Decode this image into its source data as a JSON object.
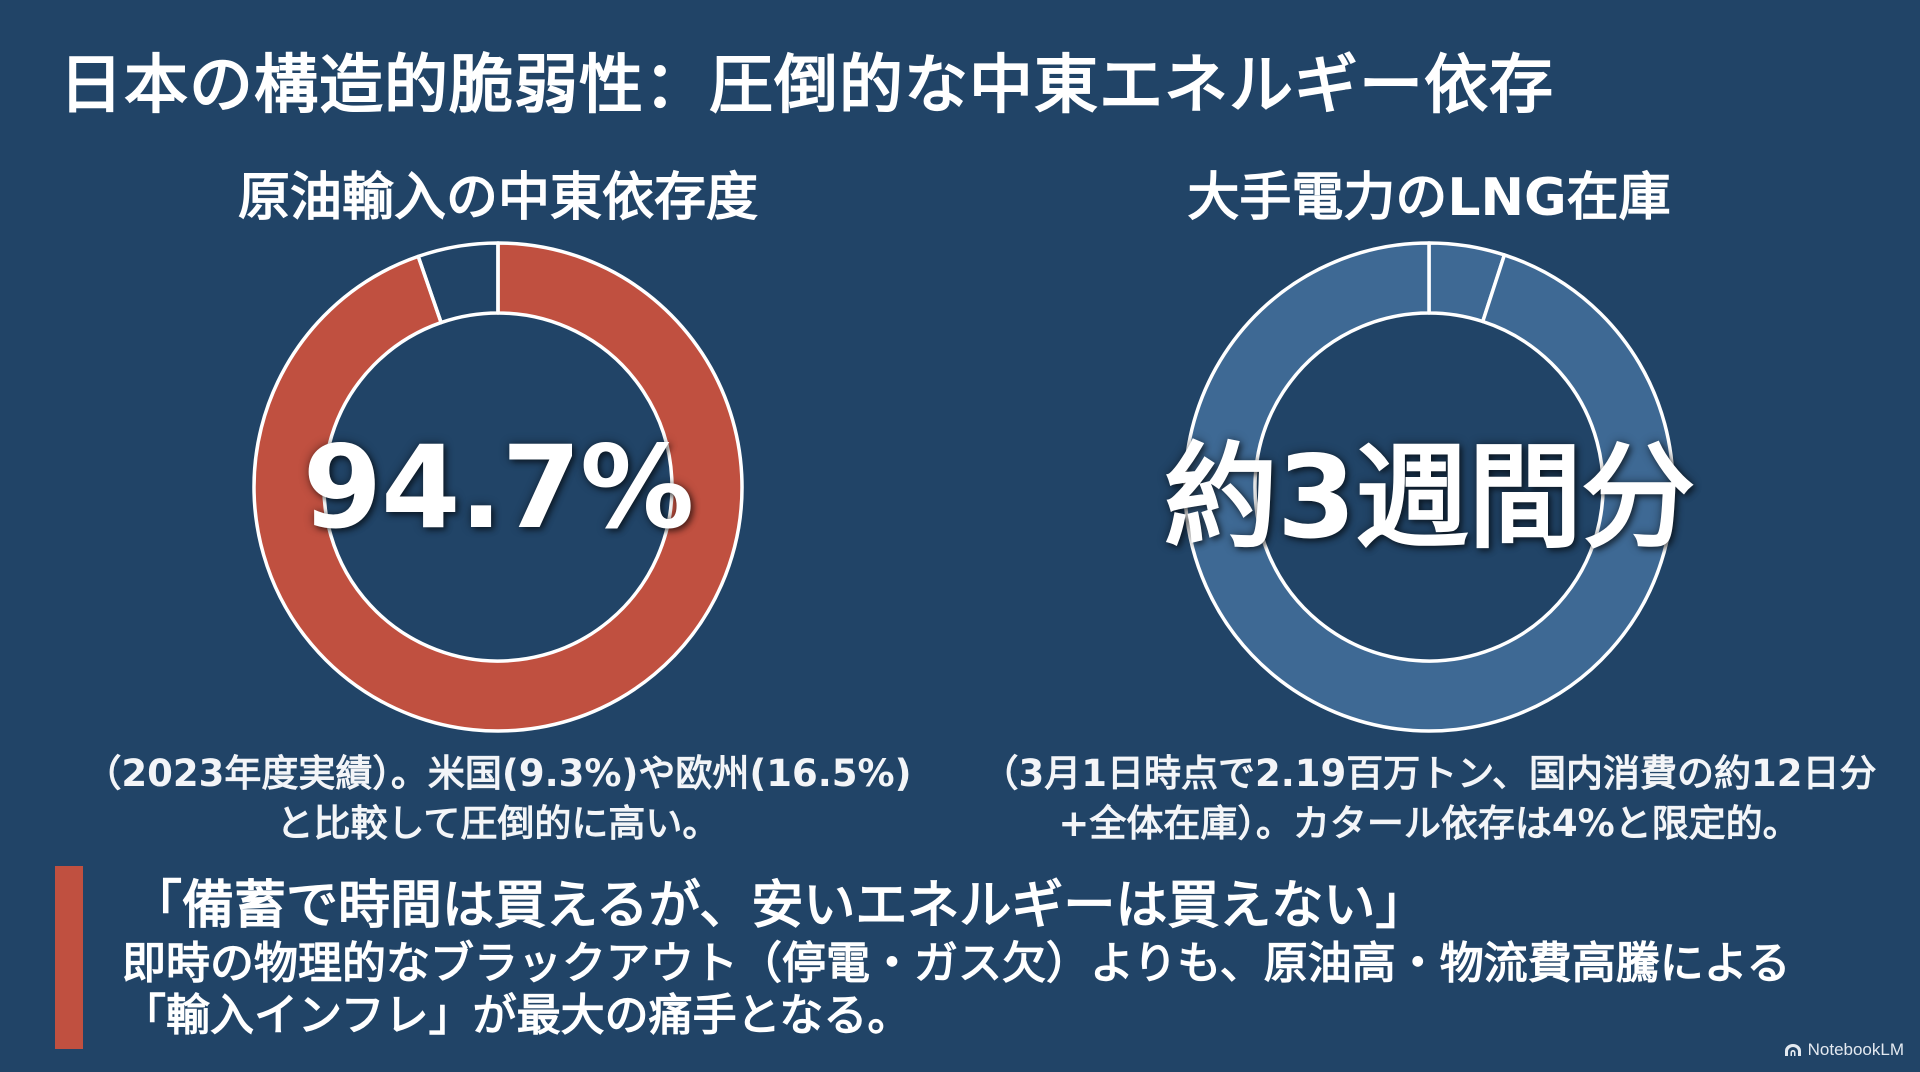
{
  "title": "日本の構造的脆弱性：圧倒的な中東エネルギー依存",
  "colors": {
    "background": "#214467",
    "text": "#ffffff",
    "accent_red": "#c05040",
    "ring_blue": "#3e6994",
    "segment_outline": "#ffffff"
  },
  "chart_data": [
    {
      "type": "pie",
      "style": "donut",
      "title": "原油輸入の中東依存度",
      "center_label": "94.7%",
      "start": "top",
      "direction": "clockwise",
      "values": [
        94.7,
        5.3
      ],
      "colors": [
        "#c05040",
        "transparent"
      ],
      "annotation_lines": [
        "（2023年度実績）。米国(9.3%)や欧州(16.5%)",
        "と比較して圧倒的に高い。"
      ]
    },
    {
      "type": "pie",
      "style": "donut",
      "title": "大手電力のLNG在庫",
      "center_label": "約3週間分",
      "start": "top",
      "direction": "clockwise",
      "values": [
        5,
        95
      ],
      "colors": [
        "#3e6994",
        "#3e6994"
      ],
      "annotation_lines": [
        "（3月1日時点で2.19百万トン、国内消費の約12日分",
        "+全体在庫）。カタール依存は4%と限定的。"
      ]
    }
  ],
  "callout": {
    "quote": "「備蓄で時間は買えるが、安いエネルギーは買えない」",
    "body_lines": [
      "即時の物理的なブラックアウト（停電・ガス欠）よりも、原油高・物流費高騰による",
      "「輸入インフレ」が最大の痛手となる。"
    ]
  },
  "watermark": {
    "icon": "notebooklm-icon",
    "text": "NotebookLM"
  }
}
